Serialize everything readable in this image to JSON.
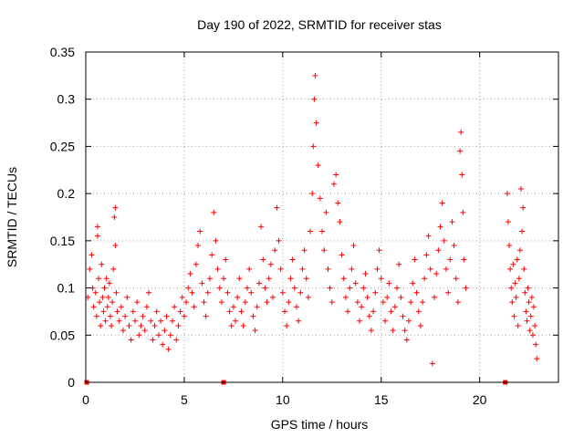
{
  "chart_data": {
    "type": "scatter",
    "title": "Day 190 of 2022, SRMTID for receiver stas",
    "xlabel": "GPS time / hours",
    "ylabel": "SRMTID / TECUs",
    "xlim": [
      0,
      24
    ],
    "ylim": [
      0,
      0.35
    ],
    "xticks": [
      0,
      5,
      10,
      15,
      20
    ],
    "xtick_labels": [
      "0",
      "5",
      "10",
      "15",
      "20"
    ],
    "yticks": [
      0,
      0.05,
      0.1,
      0.15,
      0.2,
      0.25,
      0.3,
      0.35
    ],
    "ytick_labels": [
      "0",
      "0.05",
      "0.1",
      "0.15",
      "0.2",
      "0.25",
      "0.3",
      "0.35"
    ],
    "grid": true,
    "marker": "plus",
    "color": "#ff0000",
    "series": [
      {
        "name": "SRMTID",
        "points": [
          [
            0.1,
            0.09
          ],
          [
            0.2,
            0.12
          ],
          [
            0.3,
            0.135
          ],
          [
            0.35,
            0.1
          ],
          [
            0.4,
            0.08
          ],
          [
            0.5,
            0.095
          ],
          [
            0.55,
            0.07
          ],
          [
            0.6,
            0.155
          ],
          [
            0.6,
            0.165
          ],
          [
            0.65,
            0.11
          ],
          [
            0.7,
            0.085
          ],
          [
            0.75,
            0.06
          ],
          [
            0.8,
            0.125
          ],
          [
            0.85,
            0.09
          ],
          [
            0.9,
            0.075
          ],
          [
            0.95,
            0.1
          ],
          [
            1.0,
            0.065
          ],
          [
            1.05,
            0.11
          ],
          [
            1.1,
            0.08
          ],
          [
            1.15,
            0.09
          ],
          [
            1.2,
            0.105
          ],
          [
            1.25,
            0.07
          ],
          [
            1.3,
            0.06
          ],
          [
            1.35,
            0.085
          ],
          [
            1.4,
            0.12
          ],
          [
            1.45,
            0.175
          ],
          [
            1.5,
            0.185
          ],
          [
            1.5,
            0.145
          ],
          [
            1.55,
            0.095
          ],
          [
            1.6,
            0.075
          ],
          [
            1.7,
            0.065
          ],
          [
            1.8,
            0.08
          ],
          [
            1.9,
            0.055
          ],
          [
            2.0,
            0.07
          ],
          [
            2.1,
            0.09
          ],
          [
            2.2,
            0.06
          ],
          [
            2.3,
            0.045
          ],
          [
            2.4,
            0.075
          ],
          [
            2.5,
            0.065
          ],
          [
            2.6,
            0.085
          ],
          [
            2.7,
            0.05
          ],
          [
            2.8,
            0.06
          ],
          [
            2.9,
            0.07
          ],
          [
            3.0,
            0.055
          ],
          [
            3.1,
            0.08
          ],
          [
            3.2,
            0.095
          ],
          [
            3.3,
            0.065
          ],
          [
            3.4,
            0.045
          ],
          [
            3.5,
            0.06
          ],
          [
            3.6,
            0.075
          ],
          [
            3.7,
            0.05
          ],
          [
            3.8,
            0.065
          ],
          [
            3.9,
            0.04
          ],
          [
            4.0,
            0.055
          ],
          [
            4.1,
            0.07
          ],
          [
            4.2,
            0.035
          ],
          [
            4.3,
            0.05
          ],
          [
            4.4,
            0.065
          ],
          [
            4.5,
            0.08
          ],
          [
            4.6,
            0.045
          ],
          [
            4.7,
            0.06
          ],
          [
            4.8,
            0.075
          ],
          [
            4.9,
            0.09
          ],
          [
            5.0,
            0.07
          ],
          [
            5.1,
            0.085
          ],
          [
            5.2,
            0.1
          ],
          [
            5.3,
            0.115
          ],
          [
            5.4,
            0.095
          ],
          [
            5.5,
            0.08
          ],
          [
            5.6,
            0.125
          ],
          [
            5.7,
            0.145
          ],
          [
            5.8,
            0.16
          ],
          [
            5.9,
            0.105
          ],
          [
            6.0,
            0.085
          ],
          [
            6.1,
            0.07
          ],
          [
            6.2,
            0.095
          ],
          [
            6.3,
            0.11
          ],
          [
            6.4,
            0.135
          ],
          [
            6.5,
            0.18
          ],
          [
            6.6,
            0.15
          ],
          [
            6.7,
            0.12
          ],
          [
            6.8,
            0.1
          ],
          [
            6.9,
            0.085
          ],
          [
            7.0,
            0.11
          ],
          [
            7.1,
            0.13
          ],
          [
            7.2,
            0.095
          ],
          [
            7.3,
            0.075
          ],
          [
            7.4,
            0.06
          ],
          [
            7.5,
            0.08
          ],
          [
            7.6,
            0.065
          ],
          [
            7.7,
            0.09
          ],
          [
            7.8,
            0.11
          ],
          [
            7.9,
            0.075
          ],
          [
            8.0,
            0.06
          ],
          [
            8.1,
            0.085
          ],
          [
            8.2,
            0.1
          ],
          [
            8.3,
            0.12
          ],
          [
            8.4,
            0.095
          ],
          [
            8.5,
            0.07
          ],
          [
            8.6,
            0.055
          ],
          [
            8.7,
            0.08
          ],
          [
            8.8,
            0.105
          ],
          [
            8.9,
            0.165
          ],
          [
            9.0,
            0.13
          ],
          [
            9.1,
            0.1
          ],
          [
            9.2,
            0.085
          ],
          [
            9.3,
            0.11
          ],
          [
            9.4,
            0.125
          ],
          [
            9.5,
            0.09
          ],
          [
            9.6,
            0.14
          ],
          [
            9.7,
            0.185
          ],
          [
            9.8,
            0.15
          ],
          [
            9.9,
            0.12
          ],
          [
            10.0,
            0.095
          ],
          [
            10.1,
            0.075
          ],
          [
            10.2,
            0.06
          ],
          [
            10.3,
            0.085
          ],
          [
            10.4,
            0.11
          ],
          [
            10.5,
            0.13
          ],
          [
            10.6,
            0.1
          ],
          [
            10.7,
            0.08
          ],
          [
            10.8,
            0.065
          ],
          [
            10.9,
            0.095
          ],
          [
            11.0,
            0.12
          ],
          [
            11.1,
            0.14
          ],
          [
            11.2,
            0.11
          ],
          [
            11.3,
            0.09
          ],
          [
            11.4,
            0.16
          ],
          [
            11.5,
            0.2
          ],
          [
            11.55,
            0.25
          ],
          [
            11.6,
            0.3
          ],
          [
            11.65,
            0.325
          ],
          [
            11.7,
            0.275
          ],
          [
            11.8,
            0.23
          ],
          [
            11.9,
            0.195
          ],
          [
            12.0,
            0.16
          ],
          [
            12.1,
            0.14
          ],
          [
            12.2,
            0.18
          ],
          [
            12.3,
            0.12
          ],
          [
            12.4,
            0.1
          ],
          [
            12.5,
            0.085
          ],
          [
            12.6,
            0.21
          ],
          [
            12.7,
            0.22
          ],
          [
            12.8,
            0.19
          ],
          [
            12.9,
            0.17
          ],
          [
            13.0,
            0.135
          ],
          [
            13.1,
            0.11
          ],
          [
            13.2,
            0.09
          ],
          [
            13.3,
            0.075
          ],
          [
            13.4,
            0.1
          ],
          [
            13.5,
            0.12
          ],
          [
            13.6,
            0.145
          ],
          [
            13.7,
            0.105
          ],
          [
            13.8,
            0.085
          ],
          [
            13.9,
            0.065
          ],
          [
            14.0,
            0.08
          ],
          [
            14.1,
            0.1
          ],
          [
            14.2,
            0.115
          ],
          [
            14.3,
            0.09
          ],
          [
            14.4,
            0.07
          ],
          [
            14.5,
            0.055
          ],
          [
            14.6,
            0.075
          ],
          [
            14.7,
            0.095
          ],
          [
            14.8,
            0.12
          ],
          [
            14.9,
            0.14
          ],
          [
            15.0,
            0.11
          ],
          [
            15.1,
            0.085
          ],
          [
            15.2,
            0.065
          ],
          [
            15.3,
            0.09
          ],
          [
            15.4,
            0.105
          ],
          [
            15.5,
            0.075
          ],
          [
            15.6,
            0.055
          ],
          [
            15.7,
            0.08
          ],
          [
            15.8,
            0.1
          ],
          [
            15.9,
            0.125
          ],
          [
            16.0,
            0.09
          ],
          [
            16.1,
            0.07
          ],
          [
            16.2,
            0.055
          ],
          [
            16.3,
            0.045
          ],
          [
            16.4,
            0.065
          ],
          [
            16.5,
            0.085
          ],
          [
            16.6,
            0.105
          ],
          [
            16.7,
            0.13
          ],
          [
            16.8,
            0.095
          ],
          [
            16.9,
            0.075
          ],
          [
            17.0,
            0.06
          ],
          [
            17.1,
            0.085
          ],
          [
            17.2,
            0.11
          ],
          [
            17.3,
            0.135
          ],
          [
            17.4,
            0.155
          ],
          [
            17.5,
            0.12
          ],
          [
            17.6,
            0.02
          ],
          [
            17.7,
            0.09
          ],
          [
            17.8,
            0.115
          ],
          [
            17.9,
            0.14
          ],
          [
            18.0,
            0.165
          ],
          [
            18.1,
            0.19
          ],
          [
            18.2,
            0.15
          ],
          [
            18.3,
            0.12
          ],
          [
            18.4,
            0.095
          ],
          [
            18.5,
            0.13
          ],
          [
            18.6,
            0.17
          ],
          [
            18.7,
            0.145
          ],
          [
            18.8,
            0.11
          ],
          [
            18.9,
            0.085
          ],
          [
            19.0,
            0.245
          ],
          [
            19.05,
            0.265
          ],
          [
            19.1,
            0.22
          ],
          [
            19.15,
            0.18
          ],
          [
            19.2,
            0.13
          ],
          [
            19.3,
            0.1
          ],
          [
            21.4,
            0.2
          ],
          [
            21.45,
            0.17
          ],
          [
            21.5,
            0.145
          ],
          [
            21.55,
            0.12
          ],
          [
            21.6,
            0.1
          ],
          [
            21.65,
            0.085
          ],
          [
            21.7,
            0.125
          ],
          [
            21.75,
            0.07
          ],
          [
            21.8,
            0.105
          ],
          [
            21.85,
            0.09
          ],
          [
            21.9,
            0.13
          ],
          [
            21.95,
            0.06
          ],
          [
            22.0,
            0.11
          ],
          [
            22.05,
            0.14
          ],
          [
            22.1,
            0.205
          ],
          [
            22.15,
            0.16
          ],
          [
            22.2,
            0.185
          ],
          [
            22.25,
            0.12
          ],
          [
            22.3,
            0.095
          ],
          [
            22.35,
            0.075
          ],
          [
            22.4,
            0.065
          ],
          [
            22.45,
            0.1
          ],
          [
            22.5,
            0.085
          ],
          [
            22.55,
            0.055
          ],
          [
            22.6,
            0.07
          ],
          [
            22.65,
            0.09
          ],
          [
            22.7,
            0.05
          ],
          [
            22.75,
            0.08
          ],
          [
            22.8,
            0.06
          ],
          [
            22.85,
            0.04
          ],
          [
            22.9,
            0.025
          ]
        ]
      }
    ],
    "zero_markers_x": [
      0.05,
      7.0,
      21.3
    ]
  }
}
